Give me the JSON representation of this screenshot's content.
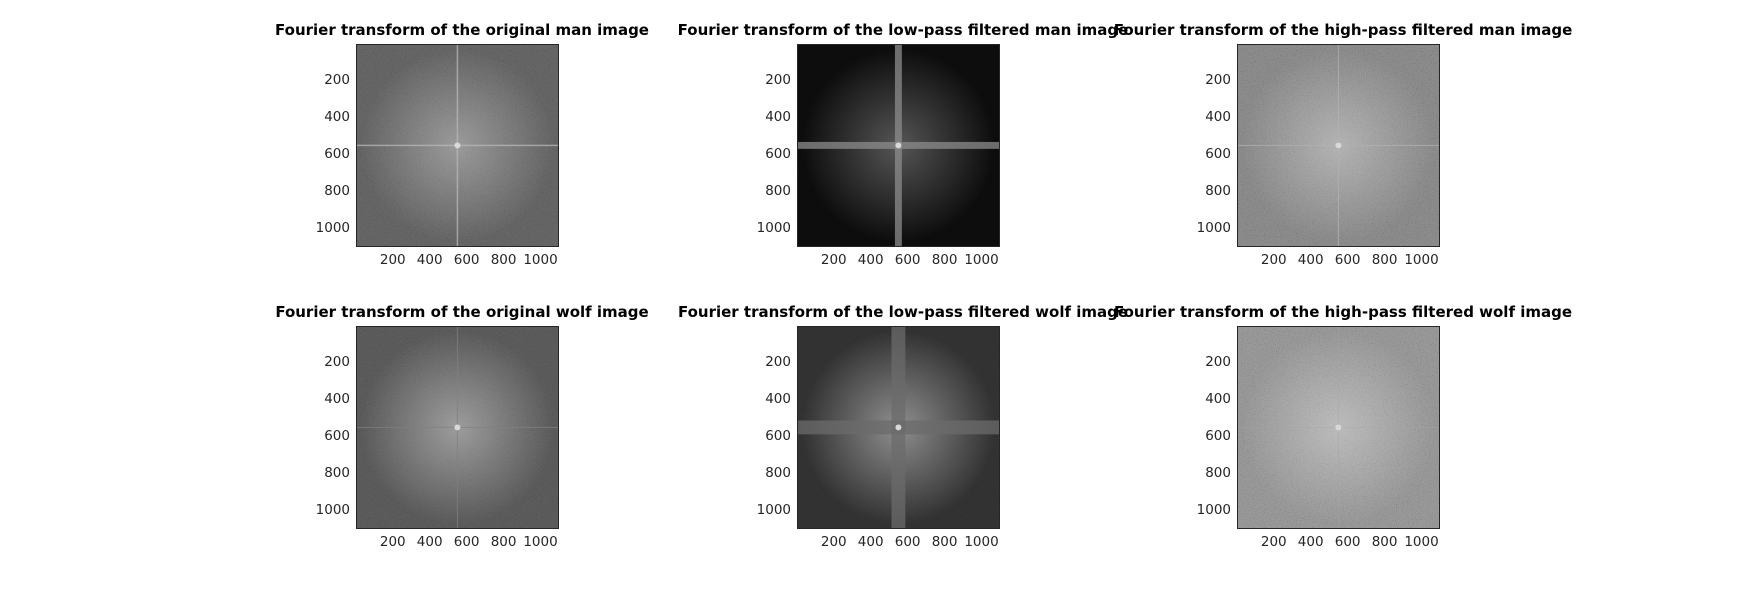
{
  "chart_data": [
    {
      "type": "heatmap",
      "title": "Fourier transform of the original man image",
      "xticks": [
        200,
        400,
        600,
        800,
        1000
      ],
      "yticks": [
        200,
        400,
        600,
        800,
        1000
      ],
      "xlim": [
        1,
        1100
      ],
      "ylim": [
        1,
        1100
      ],
      "colormap": "gray",
      "mean_intensity": 0.4,
      "cross_intensity": 0.72,
      "cross_width": 1.5,
      "center_glow": 0.35
    },
    {
      "type": "heatmap",
      "title": "Fourier transform of the low-pass filtered man image",
      "xticks": [
        200,
        400,
        600,
        800,
        1000
      ],
      "yticks": [
        200,
        400,
        600,
        800,
        1000
      ],
      "xlim": [
        1,
        1100
      ],
      "ylim": [
        1,
        1100
      ],
      "colormap": "gray",
      "mean_intensity": 0.05,
      "cross_intensity": 0.55,
      "cross_width": 7,
      "center_glow": 0.3
    },
    {
      "type": "heatmap",
      "title": "Fourier transform of the high-pass filtered man image",
      "xticks": [
        200,
        400,
        600,
        800,
        1000
      ],
      "yticks": [
        200,
        400,
        600,
        800,
        1000
      ],
      "xlim": [
        1,
        1100
      ],
      "ylim": [
        1,
        1100
      ],
      "colormap": "gray",
      "mean_intensity": 0.55,
      "cross_intensity": 0.7,
      "cross_width": 1,
      "center_glow": 0.35
    },
    {
      "type": "heatmap",
      "title": "Fourier transform of the original wolf image",
      "xticks": [
        200,
        400,
        600,
        800,
        1000
      ],
      "yticks": [
        200,
        400,
        600,
        800,
        1000
      ],
      "xlim": [
        1,
        1100
      ],
      "ylim": [
        1,
        1100
      ],
      "colormap": "gray",
      "mean_intensity": 0.36,
      "cross_intensity": 0.5,
      "cross_width": 1,
      "center_glow": 0.4
    },
    {
      "type": "heatmap",
      "title": "Fourier transform of the low-pass filtered wolf image",
      "xticks": [
        200,
        400,
        600,
        800,
        1000
      ],
      "yticks": [
        200,
        400,
        600,
        800,
        1000
      ],
      "xlim": [
        1,
        1100
      ],
      "ylim": [
        1,
        1100
      ],
      "colormap": "gray",
      "mean_intensity": 0.2,
      "cross_intensity": 0.42,
      "cross_width": 14,
      "center_glow": 0.45
    },
    {
      "type": "heatmap",
      "title": "Fourier transform of the high-pass filtered wolf image",
      "xticks": [
        200,
        400,
        600,
        800,
        1000
      ],
      "yticks": [
        200,
        400,
        600,
        800,
        1000
      ],
      "xlim": [
        1,
        1100
      ],
      "ylim": [
        1,
        1100
      ],
      "colormap": "gray",
      "mean_intensity": 0.6,
      "cross_intensity": 0.65,
      "cross_width": 0.5,
      "center_glow": 0.35
    }
  ]
}
